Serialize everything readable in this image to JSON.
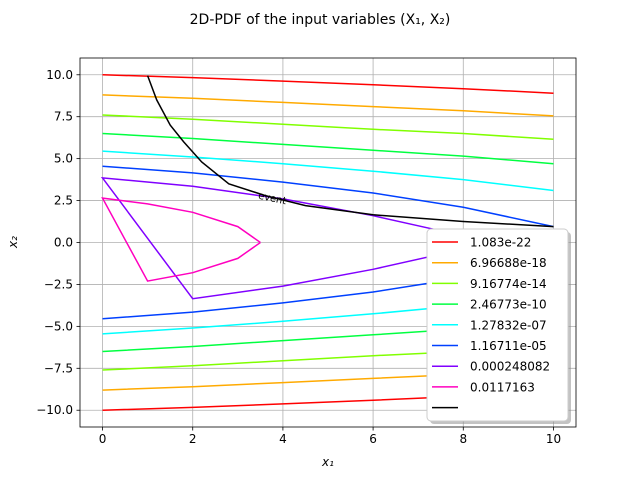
{
  "chart_data": {
    "type": "line",
    "title": "2D-PDF of the input variables (X₁, X₂)",
    "xlabel": "x₁",
    "ylabel": "x₂",
    "xlim": [
      -0.5,
      10.5
    ],
    "ylim": [
      -11.0,
      11.0
    ],
    "xticks": [
      0,
      2,
      4,
      6,
      8,
      10
    ],
    "xtick_labels": [
      "0",
      "2",
      "4",
      "6",
      "8",
      "10"
    ],
    "yticks": [
      -10.0,
      -7.5,
      -5.0,
      -2.5,
      0.0,
      2.5,
      5.0,
      7.5,
      10.0
    ],
    "ytick_labels": [
      "−10.0",
      "−7.5",
      "−5.0",
      "−2.5",
      "0.0",
      "2.5",
      "5.0",
      "7.5",
      "10.0"
    ],
    "grid": true,
    "legend_position": "lower-right",
    "annotation": "event",
    "series": [
      {
        "name": "1.083e-22",
        "color": "#ff0000",
        "upper": [
          [
            0,
            10.0
          ],
          [
            2,
            9.83
          ],
          [
            4,
            9.62
          ],
          [
            6,
            9.4
          ],
          [
            8,
            9.17
          ],
          [
            10,
            8.9
          ]
        ],
        "lower": [
          [
            0,
            -10.0
          ],
          [
            2,
            -9.83
          ],
          [
            4,
            -9.62
          ],
          [
            6,
            -9.4
          ],
          [
            8,
            -9.17
          ],
          [
            10,
            -8.9
          ]
        ]
      },
      {
        "name": "6.96688e-18",
        "color": "#ffaa00",
        "upper": [
          [
            0,
            8.8
          ],
          [
            2,
            8.6
          ],
          [
            4,
            8.35
          ],
          [
            6,
            8.1
          ],
          [
            8,
            7.85
          ],
          [
            10,
            7.55
          ]
        ],
        "lower": [
          [
            0,
            -8.8
          ],
          [
            2,
            -8.6
          ],
          [
            4,
            -8.35
          ],
          [
            6,
            -8.1
          ],
          [
            8,
            -7.85
          ],
          [
            10,
            -7.55
          ]
        ]
      },
      {
        "name": "9.16774e-14",
        "color": "#80ff00",
        "upper": [
          [
            0,
            7.6
          ],
          [
            2,
            7.35
          ],
          [
            4,
            7.05
          ],
          [
            6,
            6.75
          ],
          [
            8,
            6.5
          ],
          [
            10,
            6.15
          ]
        ],
        "lower": [
          [
            0,
            -7.6
          ],
          [
            2,
            -7.35
          ],
          [
            4,
            -7.05
          ],
          [
            6,
            -6.75
          ],
          [
            8,
            -6.5
          ],
          [
            10,
            -6.15
          ]
        ]
      },
      {
        "name": "2.46773e-10",
        "color": "#00ff40",
        "upper": [
          [
            0,
            6.5
          ],
          [
            2,
            6.2
          ],
          [
            4,
            5.85
          ],
          [
            6,
            5.5
          ],
          [
            8,
            5.15
          ],
          [
            10,
            4.7
          ]
        ],
        "lower": [
          [
            0,
            -6.5
          ],
          [
            2,
            -6.2
          ],
          [
            4,
            -5.85
          ],
          [
            6,
            -5.5
          ],
          [
            8,
            -5.15
          ],
          [
            10,
            -4.7
          ]
        ]
      },
      {
        "name": "1.27832e-07",
        "color": "#00ffff",
        "upper": [
          [
            0,
            5.45
          ],
          [
            2,
            5.1
          ],
          [
            4,
            4.7
          ],
          [
            6,
            4.25
          ],
          [
            8,
            3.75
          ],
          [
            10,
            3.1
          ]
        ],
        "lower": [
          [
            0,
            -5.45
          ],
          [
            2,
            -5.1
          ],
          [
            4,
            -4.7
          ],
          [
            6,
            -4.25
          ],
          [
            8,
            -3.75
          ],
          [
            10,
            -3.1
          ]
        ]
      },
      {
        "name": "1.16711e-05",
        "color": "#0040ff",
        "upper": [
          [
            0,
            4.55
          ],
          [
            2,
            4.15
          ],
          [
            4,
            3.6
          ],
          [
            6,
            2.95
          ],
          [
            8,
            2.1
          ],
          [
            10,
            0.95
          ]
        ],
        "lower": [
          [
            0,
            -4.55
          ],
          [
            2,
            -4.15
          ],
          [
            4,
            -3.6
          ],
          [
            6,
            -2.95
          ],
          [
            8,
            -2.1
          ],
          [
            10,
            -0.95
          ]
        ]
      },
      {
        "name": "0.000248082",
        "color": "#8000ff",
        "upper": [
          [
            0,
            3.85
          ],
          [
            2,
            3.35
          ],
          [
            4,
            2.6
          ],
          [
            6,
            1.6
          ],
          [
            7.5,
            0.7
          ],
          [
            8.2,
            0.0
          ]
        ],
        "lower": [
          [
            0,
            -3.85
          ],
          [
            2,
            -3.35
          ],
          [
            4,
            -2.6
          ],
          [
            6,
            -1.6
          ],
          [
            7.5,
            -0.7
          ],
          [
            8.2,
            0.0
          ]
        ]
      },
      {
        "name": "0.0117163",
        "color": "#ff00bf",
        "upper": [
          [
            0,
            2.65
          ],
          [
            1,
            2.3
          ],
          [
            2,
            1.8
          ],
          [
            3,
            0.95
          ],
          [
            3.5,
            0.0
          ]
        ],
        "lower": [
          [
            0,
            -2.65
          ],
          [
            1,
            -2.3
          ],
          [
            2,
            -1.8
          ],
          [
            3,
            -0.95
          ],
          [
            3.5,
            0.0
          ]
        ]
      },
      {
        "name": "",
        "color": "#000000",
        "points": [
          [
            1.0,
            9.95
          ],
          [
            1.2,
            8.5
          ],
          [
            1.5,
            7.0
          ],
          [
            1.8,
            6.0
          ],
          [
            2.2,
            4.8
          ],
          [
            2.8,
            3.5
          ],
          [
            3.6,
            2.8
          ],
          [
            4.5,
            2.2
          ],
          [
            6.0,
            1.65
          ],
          [
            8.0,
            1.25
          ],
          [
            10.0,
            0.95
          ]
        ]
      }
    ]
  }
}
